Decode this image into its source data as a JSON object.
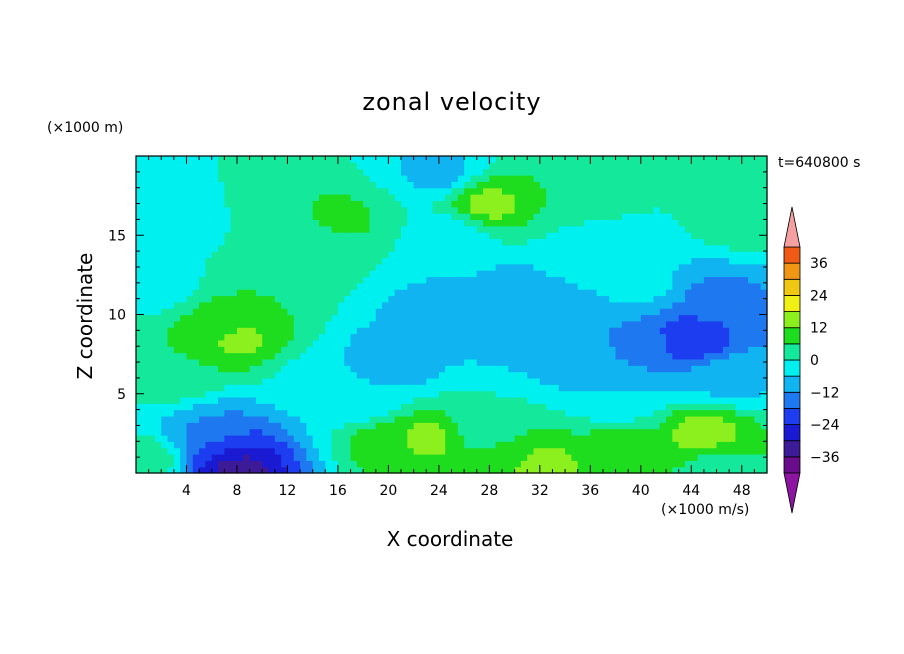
{
  "chart_data": {
    "type": "heatmap",
    "title": "zonal velocity",
    "xlabel": "X coordinate",
    "ylabel": "Z coordinate",
    "y_units_label": "(×1000 m)",
    "x_units_label": "(×1000 m/s)",
    "time_label": "t=640800 s",
    "xlim": [
      0,
      50
    ],
    "ylim": [
      0,
      20
    ],
    "x_ticks": [
      4,
      8,
      12,
      16,
      20,
      24,
      28,
      32,
      36,
      40,
      44,
      48
    ],
    "x_tick_labels": [
      "4",
      "8",
      "12",
      "16",
      "20",
      "24",
      "28",
      "32",
      "36",
      "40",
      "44",
      "48"
    ],
    "y_ticks": [
      5,
      10,
      15
    ],
    "y_tick_labels": [
      "5",
      "10",
      "15"
    ],
    "colorbar": {
      "levels": [
        -42,
        -36,
        -30,
        -24,
        -18,
        -12,
        -6,
        0,
        6,
        12,
        18,
        24,
        30,
        36,
        42
      ],
      "colors": [
        "#6a0c8c",
        "#3c1a98",
        "#1a1ad2",
        "#1c3ef0",
        "#1e78f0",
        "#10b4f0",
        "#00f0f0",
        "#14e89a",
        "#1edc1e",
        "#8cf01e",
        "#f0f014",
        "#f0c814",
        "#f09614",
        "#f05a14",
        "#e61e1e",
        "#f5a0a0"
      ],
      "tick_values": [
        -36,
        -24,
        -12,
        0,
        12,
        24,
        36
      ],
      "tick_labels": [
        "-36",
        "-24",
        "-12",
        "0",
        "12",
        "24",
        "36"
      ],
      "extend_low_color": "#8c14a0",
      "extend_high_color": "#f5a0a0"
    },
    "features": [
      {
        "x": 24,
        "z": 19,
        "value": -8
      },
      {
        "x": 28,
        "z": 17,
        "value": 14
      },
      {
        "x": 14,
        "z": 15,
        "value": 2
      },
      {
        "x": 16,
        "z": 16,
        "value": 8
      },
      {
        "x": 34,
        "z": 17.5,
        "value": 6
      },
      {
        "x": 42,
        "z": 18,
        "value": 0
      },
      {
        "x": 48,
        "z": 16,
        "value": 4
      },
      {
        "x": 8,
        "z": 8.5,
        "value": 14
      },
      {
        "x": 7,
        "z": 9,
        "value": 10
      },
      {
        "x": 10,
        "z": 12,
        "value": 6
      },
      {
        "x": 3,
        "z": 6,
        "value": 4
      },
      {
        "x": 1.5,
        "z": 12,
        "value": -4
      },
      {
        "x": 1.5,
        "z": 15,
        "value": -6
      },
      {
        "x": 14,
        "z": 6,
        "value": -2
      },
      {
        "x": 20,
        "z": 7,
        "value": -12
      },
      {
        "x": 24,
        "z": 10,
        "value": -10
      },
      {
        "x": 32,
        "z": 9,
        "value": -12
      },
      {
        "x": 36,
        "z": 7,
        "value": -10
      },
      {
        "x": 30,
        "z": 11.5,
        "value": -8
      },
      {
        "x": 40,
        "z": 12,
        "value": -4
      },
      {
        "x": 44,
        "z": 8.5,
        "value": -24
      },
      {
        "x": 40,
        "z": 8,
        "value": -14
      },
      {
        "x": 46,
        "z": 11,
        "value": -14
      },
      {
        "x": 47,
        "z": 6,
        "value": -8
      },
      {
        "x": 8,
        "z": 0.4,
        "value": -34
      },
      {
        "x": 7,
        "z": 1.5,
        "value": -24
      },
      {
        "x": 6,
        "z": 2.5,
        "value": -12
      },
      {
        "x": 1,
        "z": 1,
        "value": 4
      },
      {
        "x": 20,
        "z": 2,
        "value": 10
      },
      {
        "x": 23,
        "z": 2.2,
        "value": 14
      },
      {
        "x": 32,
        "z": 0.6,
        "value": 16
      },
      {
        "x": 30,
        "z": 1.2,
        "value": 10
      },
      {
        "x": 38,
        "z": 2,
        "value": 8
      },
      {
        "x": 45,
        "z": 2.5,
        "value": 16
      },
      {
        "x": 46,
        "z": 0.6,
        "value": 4
      },
      {
        "x": 28,
        "z": 2.8,
        "value": 0
      },
      {
        "x": 18,
        "z": 4.5,
        "value": -4
      },
      {
        "x": 38,
        "z": 4.5,
        "value": -6
      },
      {
        "x": 25,
        "z": 15,
        "value": -4
      },
      {
        "x": 36,
        "z": 14.5,
        "value": -2
      }
    ],
    "background_value": -2
  }
}
